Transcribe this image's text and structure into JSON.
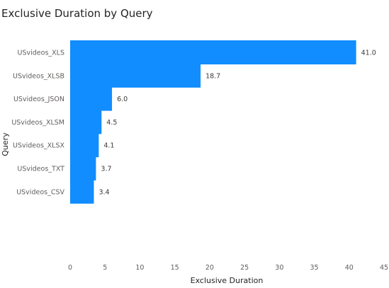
{
  "chart_data": {
    "type": "bar",
    "orientation": "horizontal",
    "title": "Exclusive Duration by Query",
    "xlabel": "Exclusive Duration",
    "ylabel": "Query",
    "categories": [
      "USvideos_XLS",
      "USvideos_XLSB",
      "USvideos_JSON",
      "USvideos_XLSM",
      "USvideos_XLSX",
      "USvideos_TXT",
      "USvideos_CSV"
    ],
    "values": [
      41.0,
      18.7,
      6.0,
      4.5,
      4.1,
      3.7,
      3.4
    ],
    "data_labels": [
      "41.0",
      "18.7",
      "6.0",
      "4.5",
      "4.1",
      "3.7",
      "3.4"
    ],
    "xlim": [
      0,
      45
    ],
    "x_ticks": [
      "0",
      "5",
      "10",
      "15",
      "20",
      "25",
      "30",
      "35",
      "40",
      "45"
    ],
    "grid": false,
    "bar_color": "#118dff"
  }
}
